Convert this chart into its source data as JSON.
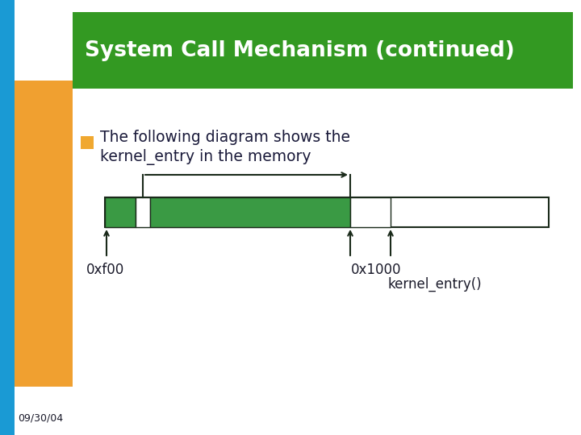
{
  "title": "System Call Mechanism (continued)",
  "title_bg": "#339922",
  "title_color": "#ffffff",
  "bullet_text_line1": "The following diagram shows the",
  "bullet_text_line2": "kernel_entry in the memory",
  "bullet_color": "#f0a830",
  "bg_color": "#ffffff",
  "orange_color": "#f0a030",
  "blue_color": "#1a9ad4",
  "date_text": "09/30/04",
  "seg_green": "#3a9a44",
  "seg_white": "#ffffff",
  "seg_border": "#1a2a1a",
  "label_0xf00": "0xf00",
  "label_0x1000": "0x1000",
  "label_kernel_entry": "kernel_entry()"
}
